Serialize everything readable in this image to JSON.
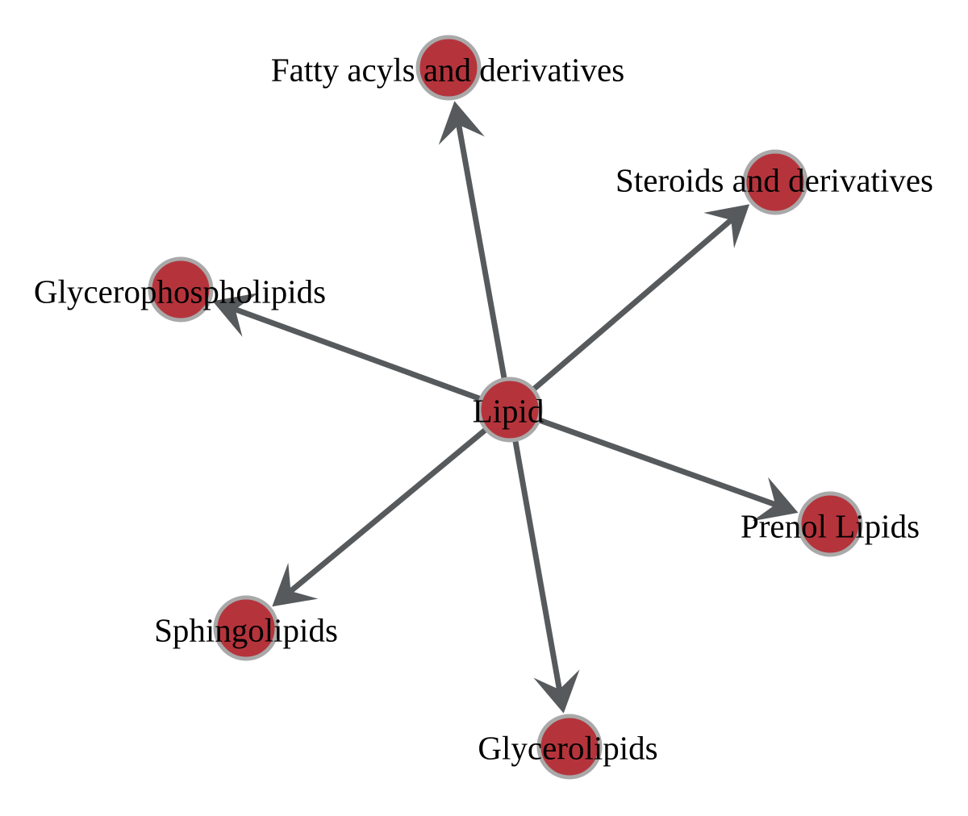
{
  "diagram": {
    "type": "directed-network",
    "colors": {
      "background": "#ffffff",
      "node_fill": "#b5343c",
      "node_stroke": "#a9a9a9",
      "edge": "#575a5c",
      "label": "#000000"
    },
    "nodes": [
      {
        "id": "lipid",
        "label": "Lipid"
      },
      {
        "id": "fatty-acyls",
        "label": "Fatty acyls and derivatives"
      },
      {
        "id": "steroids",
        "label": "Steroids and derivatives"
      },
      {
        "id": "glycerophospholipids",
        "label": "Glycerophospholipids"
      },
      {
        "id": "prenol-lipids",
        "label": "Prenol Lipids"
      },
      {
        "id": "sphingolipids",
        "label": "Sphingolipids"
      },
      {
        "id": "glycerolipids",
        "label": "Glycerolipids"
      }
    ],
    "edges": [
      {
        "from": "lipid",
        "to": "fatty-acyls"
      },
      {
        "from": "lipid",
        "to": "steroids"
      },
      {
        "from": "lipid",
        "to": "glycerophospholipids"
      },
      {
        "from": "lipid",
        "to": "prenol-lipids"
      },
      {
        "from": "lipid",
        "to": "sphingolipids"
      },
      {
        "from": "lipid",
        "to": "glycerolipids"
      }
    ]
  }
}
